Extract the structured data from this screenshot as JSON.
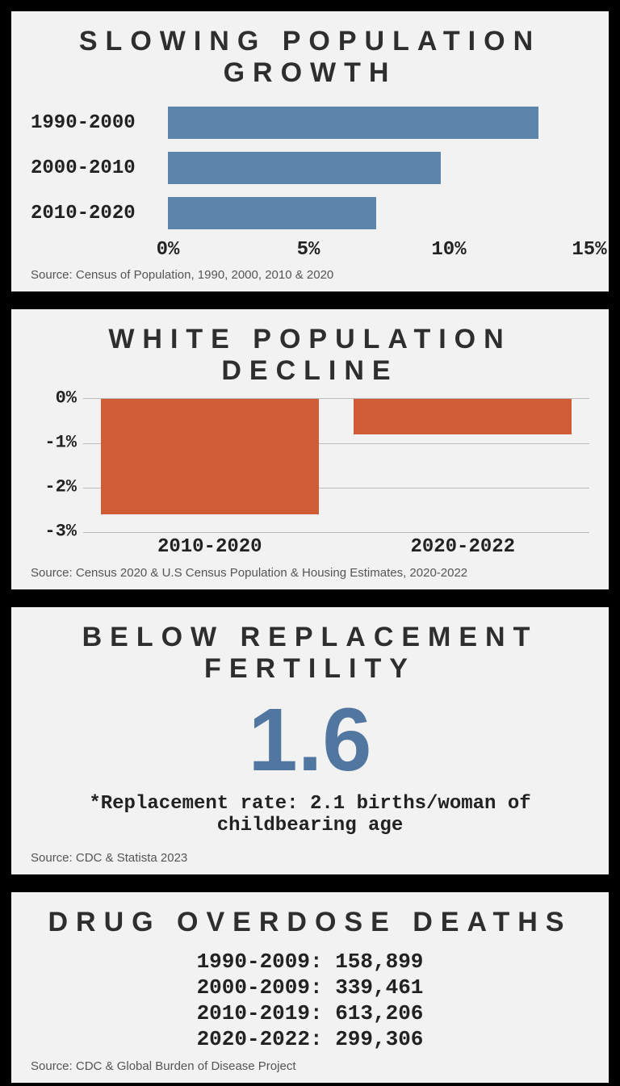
{
  "panel1": {
    "title": "SLOWING POPULATION GROWTH",
    "type": "bar_horizontal",
    "categories": [
      "1990-2000",
      "2000-2010",
      "2010-2020"
    ],
    "values": [
      13.2,
      9.7,
      7.4
    ],
    "xlim": [
      0,
      15
    ],
    "xtick_step": 5,
    "xticks": [
      "0%",
      "5%",
      "10%",
      "15%"
    ],
    "bar_color": "#5b85ab",
    "grid_color": "#bbbbbb",
    "background_color": "#f2f2f2",
    "label_fontsize": 24,
    "source": "Source: Census of Population, 1990, 2000, 2010 & 2020"
  },
  "panel2": {
    "title": "WHITE POPULATION DECLINE",
    "type": "bar_vertical_negative",
    "categories": [
      "2010-2020",
      "2020-2022"
    ],
    "values": [
      -2.6,
      -0.8
    ],
    "ylim": [
      -3,
      0
    ],
    "ytick_step": 1,
    "yticks": [
      "0%",
      "-1%",
      "-2%",
      "-3%"
    ],
    "bar_color": "#cf5c34",
    "grid_color": "#bbbbbb",
    "background_color": "#f2f2f2",
    "label_fontsize": 24,
    "source": "Source: Census 2020 & U.S Census Population & Housing Estimates, 2020-2022"
  },
  "panel3": {
    "title": "BELOW REPLACEMENT FERTILITY",
    "type": "big_number",
    "value": "1.6",
    "value_color": "#5177a0",
    "value_fontsize": 110,
    "note": "*Replacement rate: 2.1 births/woman of childbearing age",
    "source": "Source: CDC & Statista 2023"
  },
  "panel4": {
    "title": "DRUG OVERDOSE DEATHS",
    "type": "data_list",
    "rows": [
      {
        "label": "1990-2009",
        "value": "158,899"
      },
      {
        "label": "2000-2009",
        "value": "339,461"
      },
      {
        "label": "2010-2019",
        "value": "613,206"
      },
      {
        "label": "2020-2022",
        "value": "299,306"
      }
    ],
    "label_fontsize": 26,
    "source": "Source: CDC & Global Burden of Disease Project"
  },
  "style": {
    "panel_border_color": "#000000",
    "panel_border_width": 4,
    "panel_background": "#f2f2f2",
    "page_background": "#000000",
    "title_color": "#2e2e2e",
    "title_fontsize": 34,
    "title_letter_spacing": 10,
    "source_color": "#555555",
    "source_fontsize": 15,
    "mono_font": "Courier New"
  }
}
